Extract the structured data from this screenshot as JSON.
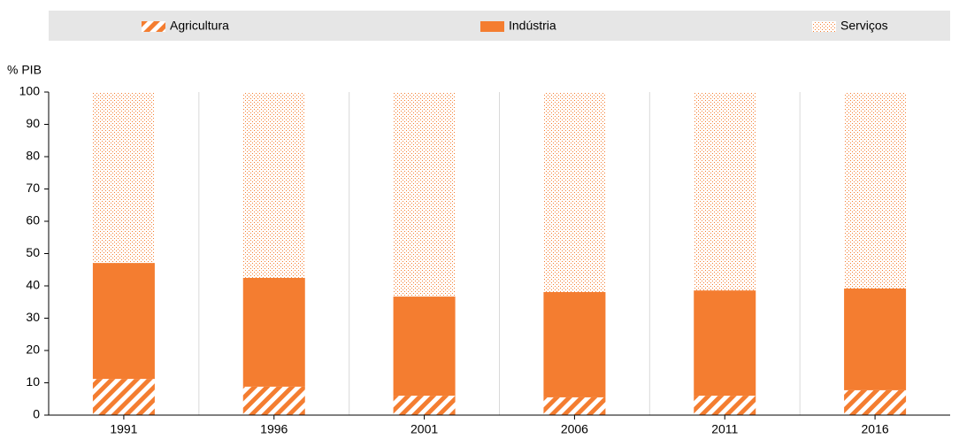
{
  "chart_data": {
    "type": "stacked_bar",
    "y_label": "% PIB",
    "categories": [
      "1991",
      "1996",
      "2001",
      "2006",
      "2011",
      "2016"
    ],
    "series": [
      {
        "name": "Agricultura",
        "color": "#f47d30",
        "pattern": "hatch",
        "values": [
          11.2,
          8.8,
          6.0,
          5.5,
          6.0,
          7.7
        ]
      },
      {
        "name": "Indústria",
        "color": "#f47d30",
        "pattern": "solid",
        "values": [
          35.9,
          33.7,
          30.7,
          32.6,
          32.6,
          31.5
        ]
      },
      {
        "name": "Serviços",
        "color": "#f47d30",
        "pattern": "dots",
        "values": [
          52.9,
          57.5,
          63.3,
          61.9,
          61.4,
          60.8
        ]
      }
    ],
    "ylim": [
      0,
      100
    ],
    "yticks": [
      0,
      10,
      20,
      30,
      40,
      50,
      60,
      70,
      80,
      90,
      100
    ],
    "grid": "x",
    "legend": "top"
  }
}
